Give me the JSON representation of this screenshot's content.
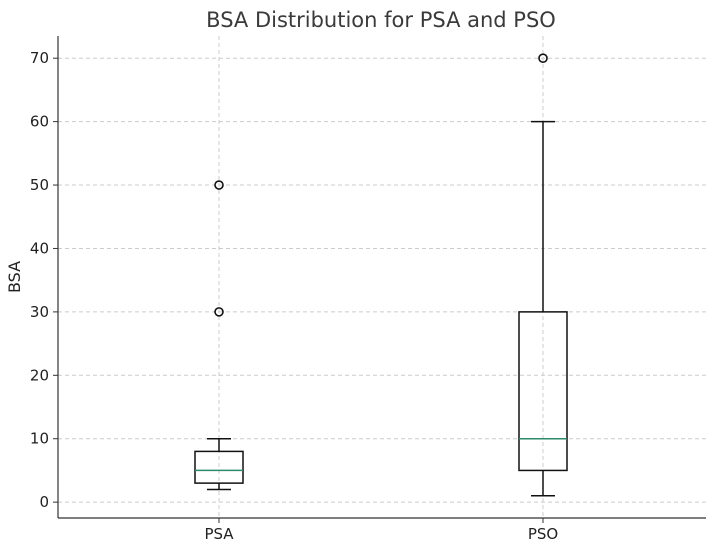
{
  "chart_data": {
    "type": "box",
    "title": "BSA Distribution for PSA and PSO",
    "xlabel": "",
    "ylabel": "BSA",
    "ylim": [
      -2.5,
      73.5
    ],
    "yticks": [
      0,
      10,
      20,
      30,
      40,
      50,
      60,
      70
    ],
    "grid": true,
    "categories": [
      "PSA",
      "PSO"
    ],
    "boxes": [
      {
        "name": "PSA",
        "whisker_low": 2,
        "q1": 3,
        "median": 5,
        "q3": 8,
        "whisker_high": 10,
        "outliers": [
          30,
          50
        ]
      },
      {
        "name": "PSO",
        "whisker_low": 1,
        "q1": 5,
        "median": 10,
        "q3": 30,
        "whisker_high": 60,
        "outliers": [
          70
        ]
      }
    ]
  }
}
